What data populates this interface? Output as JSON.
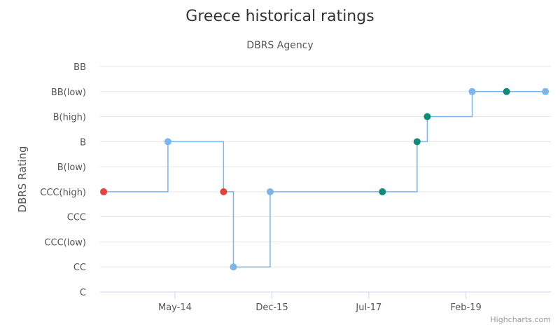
{
  "chart_data": {
    "type": "line",
    "step": true,
    "title": "Greece historical ratings",
    "subtitle": "DBRS Agency",
    "ylabel": "DBRS Rating",
    "categories_y": [
      "C",
      "CC",
      "CCC(low)",
      "CCC",
      "CCC(high)",
      "B(low)",
      "B",
      "B(high)",
      "BB(low)",
      "BB"
    ],
    "x_ticks": [
      "May-14",
      "Dec-15",
      "Jul-17",
      "Feb-19"
    ],
    "x_tick_dates": [
      "2014-05-01",
      "2015-12-01",
      "2017-07-01",
      "2019-02-01"
    ],
    "xlim": [
      "2013-03-01",
      "2020-06-01"
    ],
    "grid": true,
    "points": [
      {
        "date": "2013-03-01",
        "rating": "CCC(high)",
        "color": "#e8413b"
      },
      {
        "date": "2014-03-20",
        "rating": "B",
        "color": "#7cb5ec"
      },
      {
        "date": "2015-02-15",
        "rating": "CCC(high)",
        "color": "#e8413b"
      },
      {
        "date": "2015-04-15",
        "rating": "CC",
        "color": "#7cb5ec"
      },
      {
        "date": "2015-11-20",
        "rating": "CCC(high)",
        "color": "#7cb5ec"
      },
      {
        "date": "2017-09-20",
        "rating": "CCC(high)",
        "color": "#0e8c7a"
      },
      {
        "date": "2018-04-15",
        "rating": "B",
        "color": "#0e8c7a"
      },
      {
        "date": "2018-06-15",
        "rating": "B(high)",
        "color": "#0e8c7a"
      },
      {
        "date": "2019-03-10",
        "rating": "BB(low)",
        "color": "#7cb5ec"
      },
      {
        "date": "2019-10-01",
        "rating": "BB(low)",
        "color": "#0e8c7a"
      },
      {
        "date": "2020-05-20",
        "rating": "BB(low)",
        "color": "#7cb5ec"
      }
    ],
    "line_color": "#7cb5ec",
    "credits": "Highcharts.com"
  }
}
